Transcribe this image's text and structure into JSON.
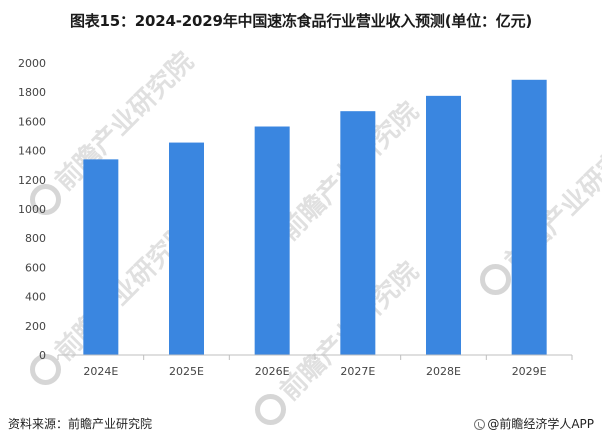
{
  "title": "图表15：2024-2029年中国速冻食品行业营业收入预测(单位：亿元)",
  "footer": {
    "source": "资料来源：前瞻产业研究院",
    "brand": "@前瞻经济学人APP"
  },
  "watermark": {
    "text": "前瞻产业研究院",
    "color": "#d6d6d6"
  },
  "chart_data": {
    "type": "bar",
    "categories": [
      "2024E",
      "2025E",
      "2026E",
      "2027E",
      "2028E",
      "2029E"
    ],
    "values": [
      1340,
      1455,
      1565,
      1670,
      1775,
      1885
    ],
    "ylim": [
      0,
      2000
    ],
    "yticks": [
      0,
      200,
      400,
      600,
      800,
      1000,
      1200,
      1400,
      1600,
      1800,
      2000
    ],
    "grid": false,
    "bar_color": "#3a86e0",
    "axis_color": "#bfbfbf",
    "tick_label_color": "#444444"
  }
}
